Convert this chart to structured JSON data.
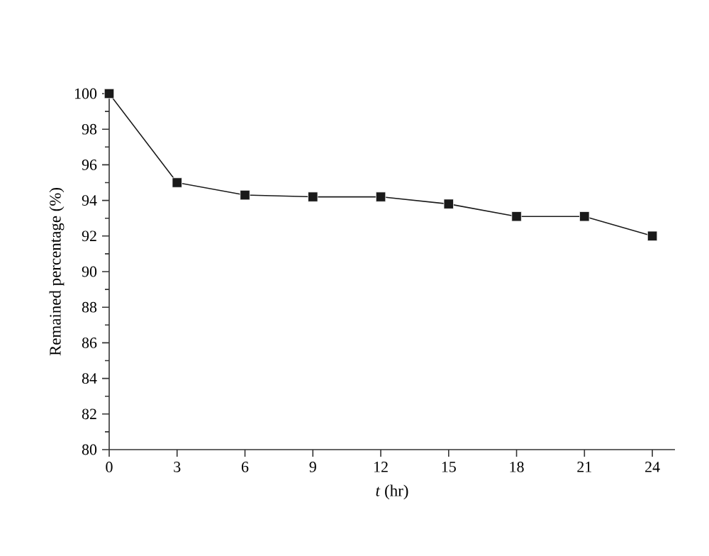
{
  "chart_data": {
    "type": "line",
    "xlabel": "*t* (hr)",
    "ylabel": "Remained percentage (%)",
    "x": [
      0,
      3,
      6,
      9,
      12,
      15,
      18,
      21,
      24
    ],
    "series": [
      {
        "color": "#1a1a1a",
        "values": [
          100,
          95,
          94.3,
          94.2,
          94.2,
          93.8,
          93.1,
          93.1,
          92.0
        ]
      }
    ],
    "xlim": [
      0,
      25
    ],
    "ylim": [
      80,
      100
    ],
    "xticks": [
      0,
      3,
      6,
      9,
      12,
      15,
      18,
      21,
      24
    ],
    "yticks": [
      80,
      82,
      84,
      86,
      88,
      90,
      92,
      94,
      96,
      98,
      100
    ],
    "marker": "square",
    "line_style": "solid",
    "grid": false
  }
}
